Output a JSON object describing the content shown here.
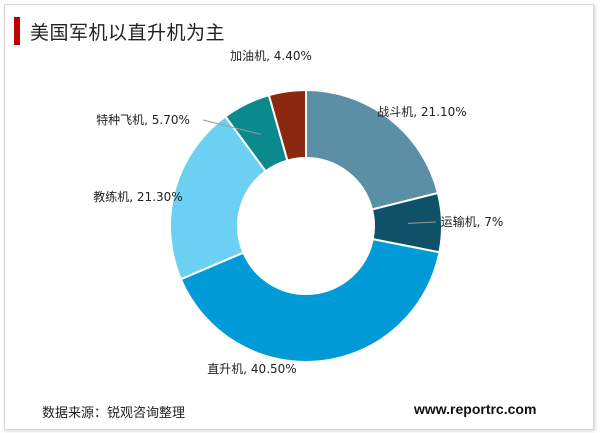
{
  "header": {
    "title": "美国军机以直升机为主"
  },
  "footer": {
    "source": "数据来源：锐观咨询整理",
    "website": "www.reportrc.com"
  },
  "chart_data": {
    "type": "pie",
    "variant": "donut",
    "title": "美国军机以直升机为主",
    "start_angle_deg": 0,
    "direction": "clockwise",
    "series": [
      {
        "name": "战斗机",
        "value": 21.1,
        "label": "战斗机, 21.10%",
        "color": "#5b8fa6"
      },
      {
        "name": "运输机",
        "value": 7.0,
        "label": "运输机, 7%",
        "color": "#0f5268"
      },
      {
        "name": "直升机",
        "value": 40.5,
        "label": "直升机, 40.50%",
        "color": "#009bd7"
      },
      {
        "name": "教练机",
        "value": 21.3,
        "label": "教练机, 21.30%",
        "color": "#6cd0f3"
      },
      {
        "name": "特种飞机",
        "value": 5.7,
        "label": "特种飞机, 5.70%",
        "color": "#0a8a8c"
      },
      {
        "name": "加油机",
        "value": 4.4,
        "label": "加油机, 4.40%",
        "color": "#8b2810"
      }
    ]
  }
}
